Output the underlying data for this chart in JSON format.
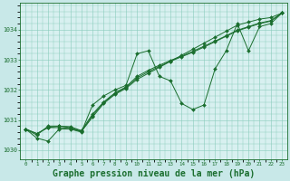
{
  "background_color": "#c8e8e8",
  "plot_bg_color": "#d8f0f0",
  "grid_color": "#88ccbb",
  "line_color": "#1a6e2e",
  "marker_color": "#1a6e2e",
  "xlabel": "Graphe pression niveau de la mer (hPa)",
  "xlabel_fontsize": 7,
  "xlim": [
    -0.5,
    23.5
  ],
  "ylim": [
    1029.7,
    1034.9
  ],
  "yticks": [
    1030,
    1031,
    1032,
    1033,
    1034
  ],
  "xticks": [
    0,
    1,
    2,
    3,
    4,
    5,
    6,
    7,
    8,
    9,
    10,
    11,
    12,
    13,
    14,
    15,
    16,
    17,
    18,
    19,
    20,
    21,
    22,
    23
  ],
  "series": [
    [
      1030.7,
      1030.4,
      1030.3,
      1030.7,
      1030.7,
      1030.6,
      1031.5,
      1031.8,
      1032.0,
      1032.15,
      1033.2,
      1033.3,
      1032.45,
      1032.3,
      1031.55,
      1031.35,
      1031.5,
      1032.7,
      1033.3,
      1034.2,
      1033.3,
      1034.1,
      1034.2,
      1034.55
    ],
    [
      1030.7,
      1030.55,
      1030.75,
      1030.75,
      1030.72,
      1030.62,
      1031.1,
      1031.55,
      1031.85,
      1032.05,
      1032.35,
      1032.55,
      1032.75,
      1032.95,
      1033.15,
      1033.35,
      1033.55,
      1033.75,
      1033.95,
      1034.15,
      1034.25,
      1034.35,
      1034.4,
      1034.55
    ],
    [
      1030.7,
      1030.55,
      1030.75,
      1030.8,
      1030.78,
      1030.65,
      1031.2,
      1031.6,
      1031.9,
      1032.1,
      1032.45,
      1032.65,
      1032.82,
      1032.98,
      1033.12,
      1033.28,
      1033.45,
      1033.62,
      1033.8,
      1033.98,
      1034.1,
      1034.22,
      1034.3,
      1034.55
    ],
    [
      1030.7,
      1030.5,
      1030.8,
      1030.8,
      1030.75,
      1030.63,
      1031.15,
      1031.58,
      1031.88,
      1032.08,
      1032.4,
      1032.6,
      1032.78,
      1032.95,
      1033.1,
      1033.25,
      1033.42,
      1033.6,
      1033.78,
      1033.96,
      1034.08,
      1034.2,
      1034.28,
      1034.55
    ]
  ]
}
